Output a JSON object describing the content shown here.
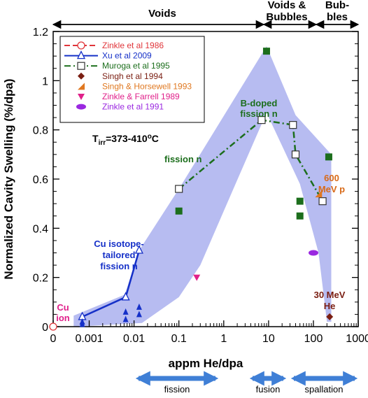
{
  "chart_data": {
    "type": "scatter",
    "title": "",
    "xlabel": "appm He/dpa",
    "ylabel": "Normalized Cavity Swelling (%/dpa)",
    "x_scale": "log (with 0 at origin)",
    "x_tick_labels": [
      "0",
      "0.001",
      "0.01",
      "0.1",
      "1",
      "10",
      "100",
      "1000"
    ],
    "y_tick_labels": [
      "0",
      "0.2",
      "0.4",
      "0.6",
      "0.8",
      "1",
      "1.2"
    ],
    "ylim": [
      0,
      1.2
    ],
    "grid": false,
    "legend_position": "top-left",
    "regimes": [
      {
        "label": "Voids",
        "from": 0,
        "to": 35
      },
      {
        "label": "Voids & Bubbles",
        "from": 35,
        "to": 200
      },
      {
        "label": "Bub- bles",
        "from": 200,
        "to": 1000
      }
    ],
    "bottom_arrows": [
      "fission",
      "fusion",
      "spallation"
    ],
    "annotations": {
      "temperature": "T_irr=373-410°C",
      "b_doped_1": "B-doped",
      "b_doped_2": "fission n",
      "fission": "fission n",
      "cu_iso_1": "Cu isotope-",
      "cu_iso_2": "tailored",
      "cu_iso_3": "fission n",
      "p600_1": "600",
      "p600_2": "MeV p",
      "mev30_1": "30 MeV",
      "mev30_2": "He",
      "cu_ion_1": "Cu",
      "cu_ion_2": "ion"
    },
    "colors": {
      "band": "#aab0ee",
      "zinkle1986": "#e0353a",
      "xu2009": "#1530c8",
      "muroga1995": "#1c6e1c",
      "singh1994": "#7a1e12",
      "singh_horsewell1993": "#e07820",
      "zinkle_farrell1989": "#e0208a",
      "zinkle1991": "#9a28e0"
    },
    "band_envelope": [
      {
        "x": 0.00045,
        "y": 0.045
      },
      {
        "x": 0.0062,
        "y": 0.13
      },
      {
        "x": 0.013,
        "y": 0.31
      },
      {
        "x": 0.1,
        "y": 0.56
      },
      {
        "x": 9,
        "y": 1.14
      },
      {
        "x": 40,
        "y": 0.86
      },
      {
        "x": 250,
        "y": 0.7
      },
      {
        "x": 250,
        "y": 0.02
      },
      {
        "x": 200,
        "y": 0.02
      },
      {
        "x": 130,
        "y": 0.3
      },
      {
        "x": 50,
        "y": 0.58
      },
      {
        "x": 9,
        "y": 0.87
      },
      {
        "x": 1,
        "y": 0.47
      },
      {
        "x": 0.3,
        "y": 0.25
      },
      {
        "x": 0.1,
        "y": 0.12
      },
      {
        "x": 0.015,
        "y": 0.015
      },
      {
        "x": 0.00045,
        "y": 0.0
      }
    ],
    "series": [
      {
        "name": "Zinkle et al 1986",
        "marker": "open-circle",
        "line": "dashed",
        "points": [
          {
            "x": 0,
            "y": 0
          }
        ]
      },
      {
        "name": "Xu et al 2009",
        "marker": "open-triangle",
        "line": "solid",
        "points": [
          {
            "x": 0.0007,
            "y": 0.04
          },
          {
            "x": 0.0065,
            "y": 0.12
          },
          {
            "x": 0.013,
            "y": 0.31
          }
        ]
      },
      {
        "name": "Xu et al 2009 (filled)",
        "marker": "filled-triangle",
        "line": "none",
        "in_legend": false,
        "points": [
          {
            "x": 0.0007,
            "y": 0.02
          },
          {
            "x": 0.0007,
            "y": 0.01
          },
          {
            "x": 0.0065,
            "y": 0.06
          },
          {
            "x": 0.0065,
            "y": 0.03
          },
          {
            "x": 0.013,
            "y": 0.08
          },
          {
            "x": 0.013,
            "y": 0.05
          }
        ]
      },
      {
        "name": "Muroga et al 1995",
        "marker": "open-square",
        "line": "dash-dot",
        "points": [
          {
            "x": 0.1,
            "y": 0.56
          },
          {
            "x": 7,
            "y": 0.84
          },
          {
            "x": 35,
            "y": 0.82
          },
          {
            "x": 40,
            "y": 0.7
          },
          {
            "x": 160,
            "y": 0.51
          }
        ]
      },
      {
        "name": "Muroga et al 1995 (filled)",
        "marker": "filled-square",
        "line": "none",
        "in_legend": false,
        "points": [
          {
            "x": 0.1,
            "y": 0.47
          },
          {
            "x": 9,
            "y": 1.12
          },
          {
            "x": 50,
            "y": 0.51
          },
          {
            "x": 50,
            "y": 0.45
          },
          {
            "x": 220,
            "y": 0.69
          }
        ]
      },
      {
        "name": "Singh et al 1994",
        "marker": "filled-diamond",
        "line": "none",
        "points": [
          {
            "x": 230,
            "y": 0.04
          }
        ]
      },
      {
        "name": "Singh & Horsewell 1993",
        "marker": "filled-corner-triangle",
        "line": "none",
        "points": [
          {
            "x": 130,
            "y": 0.54
          }
        ]
      },
      {
        "name": "Zinkle & Farrell 1989",
        "marker": "down-triangle",
        "line": "none",
        "points": [
          {
            "x": 0.25,
            "y": 0.2
          }
        ]
      },
      {
        "name": "Zinkle et al 1991",
        "marker": "filled-hexagon",
        "line": "none",
        "points": [
          {
            "x": 100,
            "y": 0.3
          }
        ]
      }
    ]
  }
}
